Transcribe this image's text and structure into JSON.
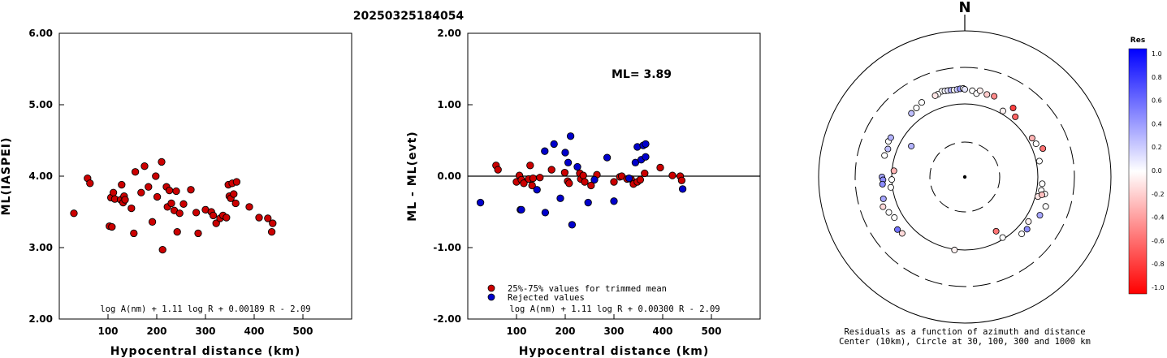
{
  "title": "20250325184054",
  "chart_data": [
    {
      "type": "scatter",
      "id": "left",
      "xlabel": "Hypocentral distance (km)",
      "ylabel": "ML(IASPEI)",
      "xlim": [
        0,
        600
      ],
      "ylim": [
        2.0,
        6.0
      ],
      "xticks": [
        100,
        200,
        300,
        400,
        500
      ],
      "xtick_labels": [
        "100",
        "200",
        "300",
        "400",
        "500"
      ],
      "yticks": [
        2.0,
        3.0,
        4.0,
        5.0,
        6.0
      ],
      "ytick_labels": [
        "2.00",
        "3.00",
        "4.00",
        "5.00",
        "6.00"
      ],
      "formula": "log A(nm) + 1.11 log R + 0.00189 R - 2.09",
      "point_color": "#cc0000",
      "points": [
        [
          30,
          3.48
        ],
        [
          58,
          3.97
        ],
        [
          63,
          3.9
        ],
        [
          103,
          3.3
        ],
        [
          106,
          3.7
        ],
        [
          108,
          3.29
        ],
        [
          111,
          3.77
        ],
        [
          114,
          3.68
        ],
        [
          126,
          3.67
        ],
        [
          128,
          3.88
        ],
        [
          131,
          3.63
        ],
        [
          133,
          3.72
        ],
        [
          135,
          3.67
        ],
        [
          148,
          3.55
        ],
        [
          153,
          3.2
        ],
        [
          156,
          4.06
        ],
        [
          168,
          3.77
        ],
        [
          175,
          4.14
        ],
        [
          183,
          3.85
        ],
        [
          191,
          3.36
        ],
        [
          198,
          4.0
        ],
        [
          201,
          3.71
        ],
        [
          210,
          4.2
        ],
        [
          212,
          2.97
        ],
        [
          220,
          3.85
        ],
        [
          222,
          3.57
        ],
        [
          226,
          3.8
        ],
        [
          230,
          3.62
        ],
        [
          236,
          3.52
        ],
        [
          240,
          3.79
        ],
        [
          242,
          3.22
        ],
        [
          247,
          3.48
        ],
        [
          255,
          3.61
        ],
        [
          270,
          3.81
        ],
        [
          281,
          3.49
        ],
        [
          285,
          3.2
        ],
        [
          300,
          3.53
        ],
        [
          312,
          3.5
        ],
        [
          316,
          3.45
        ],
        [
          322,
          3.34
        ],
        [
          330,
          3.41
        ],
        [
          336,
          3.45
        ],
        [
          343,
          3.42
        ],
        [
          347,
          3.88
        ],
        [
          349,
          3.72
        ],
        [
          352,
          3.69
        ],
        [
          355,
          3.9
        ],
        [
          358,
          3.75
        ],
        [
          362,
          3.62
        ],
        [
          364,
          3.92
        ],
        [
          390,
          3.57
        ],
        [
          410,
          3.42
        ],
        [
          428,
          3.41
        ],
        [
          436,
          3.22
        ],
        [
          438,
          3.34
        ]
      ]
    },
    {
      "type": "scatter",
      "id": "middle",
      "xlabel": "Hypocentral distance (km)",
      "ylabel": "ML - ML(evt)",
      "xlim": [
        0,
        600
      ],
      "ylim": [
        -2.0,
        2.0
      ],
      "xticks": [
        100,
        200,
        300,
        400,
        500
      ],
      "xtick_labels": [
        "100",
        "200",
        "300",
        "400",
        "500"
      ],
      "yticks": [
        -2.0,
        -1.0,
        0.0,
        1.0,
        2.0
      ],
      "ytick_labels": [
        "-2.00",
        "-1.00",
        "0.00",
        "1.00",
        "2.00"
      ],
      "annotation": "ML= 3.89",
      "formula": "log A(nm) + 1.11 log R + 0.00300 R - 2.09",
      "legend": [
        {
          "label": "25%-75% values for trimmed mean",
          "color": "#cc0000"
        },
        {
          "label": "Rejected values",
          "color": "#0000cc"
        }
      ],
      "series": [
        {
          "name": "25%-75% values for trimmed mean",
          "color": "#cc0000",
          "points": [
            [
              58,
              0.15
            ],
            [
              62,
              0.09
            ],
            [
              100,
              -0.08
            ],
            [
              106,
              0.01
            ],
            [
              110,
              -0.05
            ],
            [
              115,
              -0.1
            ],
            [
              125,
              -0.04
            ],
            [
              128,
              0.15
            ],
            [
              132,
              -0.13
            ],
            [
              134,
              -0.03
            ],
            [
              148,
              -0.02
            ],
            [
              172,
              0.09
            ],
            [
              199,
              0.05
            ],
            [
              205,
              -0.07
            ],
            [
              208,
              -0.1
            ],
            [
              230,
              0.04
            ],
            [
              232,
              -0.04
            ],
            [
              237,
              0.01
            ],
            [
              240,
              -0.08
            ],
            [
              253,
              -0.13
            ],
            [
              265,
              0.02
            ],
            [
              300,
              -0.08
            ],
            [
              312,
              -0.01
            ],
            [
              316,
              0.0
            ],
            [
              327,
              -0.04
            ],
            [
              335,
              -0.04
            ],
            [
              340,
              -0.11
            ],
            [
              348,
              -0.08
            ],
            [
              354,
              -0.05
            ],
            [
              363,
              0.04
            ],
            [
              395,
              0.12
            ],
            [
              420,
              0.01
            ],
            [
              436,
              0.0
            ],
            [
              439,
              -0.06
            ]
          ]
        },
        {
          "name": "Rejected values",
          "color": "#0000cc",
          "points": [
            [
              26,
              -0.37
            ],
            [
              108,
              -0.47
            ],
            [
              110,
              -0.47
            ],
            [
              142,
              -0.19
            ],
            [
              158,
              0.35
            ],
            [
              159,
              -0.51
            ],
            [
              177,
              0.45
            ],
            [
              190,
              -0.31
            ],
            [
              200,
              0.33
            ],
            [
              206,
              0.19
            ],
            [
              211,
              0.56
            ],
            [
              214,
              -0.68
            ],
            [
              225,
              0.13
            ],
            [
              247,
              -0.37
            ],
            [
              260,
              -0.05
            ],
            [
              286,
              0.26
            ],
            [
              300,
              -0.35
            ],
            [
              331,
              -0.03
            ],
            [
              344,
              0.19
            ],
            [
              348,
              0.41
            ],
            [
              356,
              0.23
            ],
            [
              360,
              0.43
            ],
            [
              365,
              0.45
            ],
            [
              365,
              0.27
            ],
            [
              441,
              -0.18
            ]
          ]
        }
      ]
    },
    {
      "type": "polar-scatter",
      "id": "polar",
      "north_label": "N",
      "caption_line1": "Residuals as a function of azimuth and distance",
      "caption_line2": "Center (10km), Circle at 30, 100, 300 and 1000 km",
      "colorbar": {
        "title": "Res",
        "range": [
          -1.0,
          1.0
        ],
        "tick_labels": [
          "1.0",
          "0.8",
          "0.6",
          "0.4",
          "0.2",
          "0.0",
          "-0.2",
          "-0.4",
          "-0.6",
          "-0.8",
          "-1.0"
        ],
        "top_color": "#0000ff",
        "bottom_color": "#ff0000"
      },
      "points": [
        {
          "az": 345,
          "dist": 160,
          "res": 0.0
        },
        {
          "az": 347,
          "dist": 158,
          "res": 0.05
        },
        {
          "az": 349,
          "dist": 157,
          "res": 0.1
        },
        {
          "az": 351,
          "dist": 156,
          "res": 0.3
        },
        {
          "az": 353,
          "dist": 155,
          "res": 0.0
        },
        {
          "az": 355,
          "dist": 156,
          "res": 0.2
        },
        {
          "az": 357,
          "dist": 158,
          "res": 0.4
        },
        {
          "az": 359,
          "dist": 159,
          "res": 0.0
        },
        {
          "az": 0,
          "dist": 155,
          "res": 0.1
        },
        {
          "az": 342,
          "dist": 152,
          "res": 0.0
        },
        {
          "az": 340,
          "dist": 150,
          "res": -0.1
        },
        {
          "az": 5,
          "dist": 150,
          "res": 0.0
        },
        {
          "az": 8,
          "dist": 140,
          "res": 0.0
        },
        {
          "az": 10,
          "dist": 155,
          "res": -0.05
        },
        {
          "az": 15,
          "dist": 145,
          "res": -0.2
        },
        {
          "az": 20,
          "dist": 147,
          "res": -0.45
        },
        {
          "az": 330,
          "dist": 148,
          "res": 0.0
        },
        {
          "az": 325,
          "dist": 140,
          "res": 0.0
        },
        {
          "az": 320,
          "dist": 135,
          "res": 0.25
        },
        {
          "az": 35,
          "dist": 140,
          "res": -0.75
        },
        {
          "az": 40,
          "dist": 118,
          "res": -0.6
        },
        {
          "az": 290,
          "dist": 130,
          "res": 0.25
        },
        {
          "az": 295,
          "dist": 140,
          "res": 0.0
        },
        {
          "az": 298,
          "dist": 138,
          "res": 0.3
        },
        {
          "az": 60,
          "dist": 115,
          "res": -0.3
        },
        {
          "az": 65,
          "dist": 118,
          "res": 0.0
        },
        {
          "az": 70,
          "dist": 135,
          "res": -0.55
        },
        {
          "az": 300,
          "dist": 70,
          "res": 0.3
        },
        {
          "az": 250,
          "dist": 152,
          "res": -0.15
        },
        {
          "az": 255,
          "dist": 140,
          "res": 0.35
        },
        {
          "az": 262,
          "dist": 105,
          "res": 0.0
        },
        {
          "az": 268,
          "dist": 100,
          "res": 0.0
        },
        {
          "az": 275,
          "dist": 94,
          "res": -0.3
        },
        {
          "az": 285,
          "dist": 135,
          "res": 0.0
        },
        {
          "az": 270,
          "dist": 134,
          "res": 0.35
        },
        {
          "az": 268,
          "dist": 130,
          "res": 0.45
        },
        {
          "az": 265,
          "dist": 133,
          "res": 0.45
        },
        {
          "az": 245,
          "dist": 138,
          "res": 0.0
        },
        {
          "az": 240,
          "dist": 128,
          "res": 0.0
        },
        {
          "az": 232,
          "dist": 145,
          "res": 0.55
        },
        {
          "az": 228,
          "dist": 140,
          "res": -0.15
        },
        {
          "az": 95,
          "dist": 115,
          "res": 0.0
        },
        {
          "az": 100,
          "dist": 115,
          "res": 0.0
        },
        {
          "az": 102,
          "dist": 130,
          "res": 0.0
        },
        {
          "az": 105,
          "dist": 108,
          "res": -0.1
        },
        {
          "az": 103,
          "dist": 120,
          "res": -0.25
        },
        {
          "az": 110,
          "dist": 148,
          "res": 0.0
        },
        {
          "az": 117,
          "dist": 140,
          "res": 0.35
        },
        {
          "az": 125,
          "dist": 115,
          "res": -0.05
        },
        {
          "az": 130,
          "dist": 128,
          "res": 0.45
        },
        {
          "az": 135,
          "dist": 125,
          "res": 0.0
        },
        {
          "az": 150,
          "dist": 72,
          "res": -0.55
        },
        {
          "az": 148,
          "dist": 95,
          "res": 0.0
        },
        {
          "az": 188,
          "dist": 102,
          "res": -0.05
        },
        {
          "az": 30,
          "dist": 110,
          "res": -0.05
        },
        {
          "az": 78,
          "dist": 110,
          "res": 0.0
        }
      ]
    }
  ]
}
